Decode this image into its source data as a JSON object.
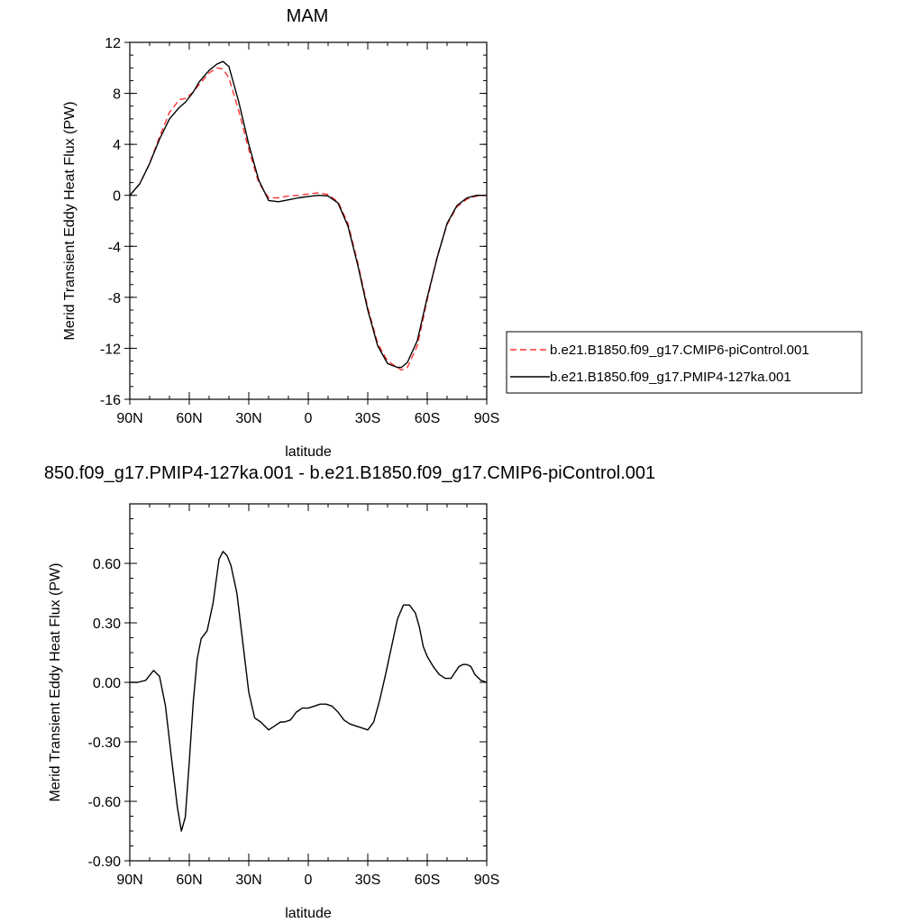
{
  "chart_data": [
    {
      "type": "line",
      "title": "MAM",
      "xlabel": "latitude",
      "ylabel": "Merid Transient Eddy Heat Flux (PW)",
      "xlim": [
        90,
        -90
      ],
      "ylim": [
        -16,
        12
      ],
      "x_ticks": [
        {
          "value": 90,
          "label": "90N"
        },
        {
          "value": 60,
          "label": "60N"
        },
        {
          "value": 30,
          "label": "30N"
        },
        {
          "value": 0,
          "label": "0"
        },
        {
          "value": -30,
          "label": "30S"
        },
        {
          "value": -60,
          "label": "60S"
        },
        {
          "value": -90,
          "label": "90S"
        }
      ],
      "y_ticks": [
        {
          "value": 12,
          "label": "12"
        },
        {
          "value": 8,
          "label": "8"
        },
        {
          "value": 4,
          "label": "4"
        },
        {
          "value": 0,
          "label": "0"
        },
        {
          "value": -4,
          "label": "-4"
        },
        {
          "value": -8,
          "label": "-8"
        },
        {
          "value": -12,
          "label": "-12"
        },
        {
          "value": -16,
          "label": "-16"
        }
      ],
      "legend_position": "right",
      "series": [
        {
          "name": "b.e21.B1850.f09_g17.CMIP6-piControl.001",
          "color": "#ff3333",
          "dash": "dashed",
          "x": [
            90,
            85,
            80,
            75,
            70,
            65,
            62,
            58,
            55,
            50,
            46,
            43,
            40,
            35,
            30,
            25,
            20,
            15,
            10,
            5,
            0,
            -5,
            -10,
            -15,
            -20,
            -25,
            -30,
            -35,
            -40,
            -45,
            -47,
            -50,
            -55,
            -60,
            -65,
            -70,
            -75,
            -80,
            -85,
            -90
          ],
          "y": [
            0,
            0.9,
            2.5,
            4.6,
            6.5,
            7.5,
            7.6,
            8.1,
            8.7,
            9.6,
            10.0,
            9.9,
            9.2,
            6.6,
            3.6,
            1.0,
            -0.2,
            -0.2,
            -0.05,
            0.0,
            0.1,
            0.2,
            0.05,
            -0.5,
            -2.2,
            -5.3,
            -8.8,
            -11.6,
            -13.0,
            -13.5,
            -13.7,
            -13.5,
            -11.8,
            -8.2,
            -4.8,
            -2.3,
            -0.9,
            -0.3,
            -0.05,
            0
          ]
        },
        {
          "name": "b.e21.B1850.f09_g17.PMIP4-127ka.001",
          "color": "#000000",
          "dash": "solid",
          "x": [
            90,
            85,
            80,
            75,
            70,
            65,
            62,
            58,
            55,
            50,
            46,
            43,
            40,
            35,
            30,
            25,
            20,
            15,
            10,
            5,
            0,
            -5,
            -10,
            -15,
            -20,
            -25,
            -30,
            -35,
            -40,
            -45,
            -47,
            -50,
            -55,
            -60,
            -65,
            -70,
            -75,
            -80,
            -85,
            -90
          ],
          "y": [
            0,
            0.9,
            2.5,
            4.4,
            6.0,
            6.9,
            7.3,
            8.1,
            8.9,
            9.8,
            10.3,
            10.5,
            10.1,
            7.3,
            4.0,
            1.2,
            -0.4,
            -0.5,
            -0.35,
            -0.2,
            -0.1,
            0.0,
            -0.05,
            -0.6,
            -2.4,
            -5.5,
            -9.0,
            -11.8,
            -13.2,
            -13.5,
            -13.5,
            -13.1,
            -11.4,
            -8.0,
            -4.9,
            -2.2,
            -0.8,
            -0.2,
            0.0,
            0
          ]
        }
      ]
    },
    {
      "type": "line",
      "title": "850.f09_g17.PMIP4-127ka.001 - b.e21.B1850.f09_g17.CMIP6-piControl.001",
      "xlabel": "latitude",
      "ylabel": "Merid Transient Eddy Heat Flux (PW)",
      "xlim": [
        90,
        -90
      ],
      "ylim": [
        -0.9,
        0.9
      ],
      "x_ticks": [
        {
          "value": 90,
          "label": "90N"
        },
        {
          "value": 60,
          "label": "60N"
        },
        {
          "value": 30,
          "label": "30N"
        },
        {
          "value": 0,
          "label": "0"
        },
        {
          "value": -30,
          "label": "30S"
        },
        {
          "value": -60,
          "label": "60S"
        },
        {
          "value": -90,
          "label": "90S"
        }
      ],
      "y_ticks": [
        {
          "value": 0.6,
          "label": "0.60"
        },
        {
          "value": 0.3,
          "label": "0.30"
        },
        {
          "value": 0,
          "label": "0.00"
        },
        {
          "value": -0.3,
          "label": "-0.30"
        },
        {
          "value": -0.6,
          "label": "-0.60"
        },
        {
          "value": -0.9,
          "label": "-0.90"
        }
      ],
      "series": [
        {
          "color": "#000000",
          "dash": "solid",
          "x": [
            90,
            86,
            82,
            78,
            75,
            72,
            69,
            66,
            64,
            62,
            60,
            58,
            56,
            54,
            51,
            48,
            45,
            43,
            41,
            39,
            36,
            33,
            30,
            27,
            24,
            20,
            17,
            14,
            12,
            9,
            6,
            3,
            0,
            -3,
            -6,
            -9,
            -12,
            -15,
            -18,
            -21,
            -24,
            -27,
            -30,
            -33,
            -36,
            -39,
            -42,
            -45,
            -48,
            -51,
            -54,
            -56,
            -58,
            -60,
            -63,
            -66,
            -69,
            -72,
            -74,
            -76,
            -78,
            -80,
            -82,
            -84,
            -87,
            -90
          ],
          "y": [
            0,
            0.0,
            0.01,
            0.06,
            0.03,
            -0.12,
            -0.38,
            -0.63,
            -0.75,
            -0.68,
            -0.4,
            -0.1,
            0.12,
            0.22,
            0.26,
            0.4,
            0.62,
            0.66,
            0.64,
            0.59,
            0.45,
            0.2,
            -0.05,
            -0.18,
            -0.2,
            -0.24,
            -0.22,
            -0.2,
            -0.2,
            -0.19,
            -0.15,
            -0.13,
            -0.13,
            -0.12,
            -0.11,
            -0.11,
            -0.12,
            -0.15,
            -0.19,
            -0.21,
            -0.22,
            -0.23,
            -0.24,
            -0.2,
            -0.09,
            0.04,
            0.18,
            0.32,
            0.39,
            0.39,
            0.35,
            0.28,
            0.18,
            0.13,
            0.08,
            0.04,
            0.02,
            0.02,
            0.05,
            0.08,
            0.09,
            0.09,
            0.08,
            0.04,
            0.01,
            0
          ]
        }
      ]
    }
  ]
}
